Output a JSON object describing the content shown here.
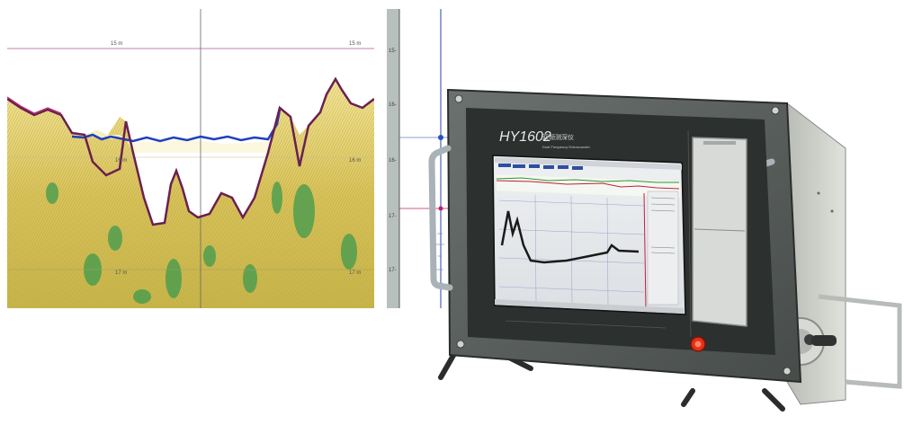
{
  "echogram": {
    "depth_labels": [
      "15 m",
      "15 m",
      "16 m",
      "16 m",
      "17 m",
      "17 m"
    ],
    "colors": {
      "background": "#f2e6a0",
      "high_freq_line": "#1f3fbf",
      "low_freq_line": "#c0206a",
      "guide_line": "#c080b0",
      "vegetation_green": "#3f9a4f"
    }
  },
  "depth_scale": {
    "ticks": [
      "15-",
      "16-",
      "16-",
      "17-",
      "17-"
    ]
  },
  "device": {
    "model": "HY1602",
    "title_cn": "双频测深仪",
    "subtitle": "Dual Frequency Echosounder",
    "colors": {
      "body": "#5d6360",
      "bezel": "#2c302f",
      "side_panel": "#c9ccc6",
      "handle": "#9aa3a8",
      "power_button": "#e2301a"
    }
  }
}
